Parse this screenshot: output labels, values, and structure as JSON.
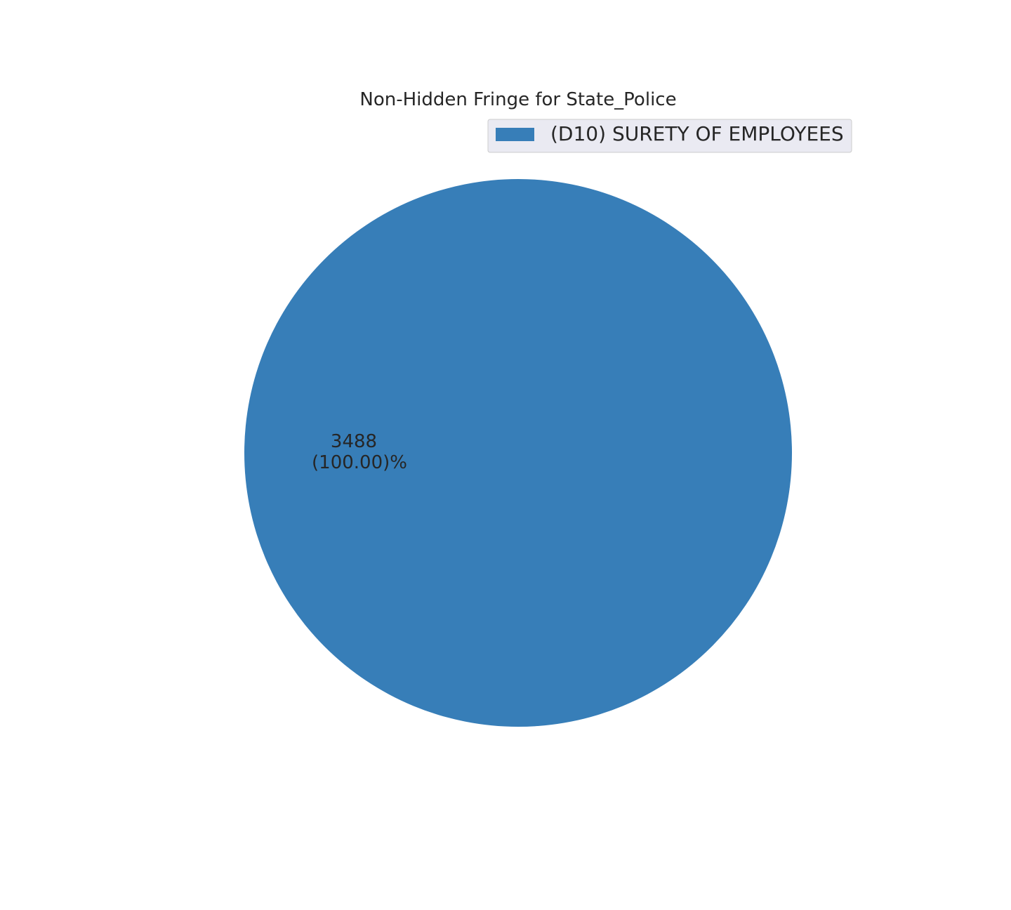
{
  "chart_data": {
    "type": "pie",
    "title": "Non-Hidden Fringe for State_Police",
    "slices": [
      {
        "label": "(D10) SURETY OF EMPLOYEES",
        "value": 3488,
        "percent": 100.0,
        "value_text": "3488",
        "percent_text": "(100.00)%",
        "color": "#377eb8"
      }
    ],
    "legend_position": "top-right",
    "legend_background": "#eaeaf2"
  }
}
